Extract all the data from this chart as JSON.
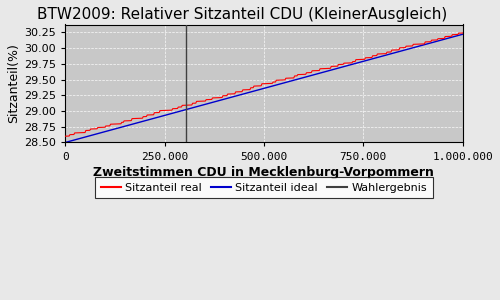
{
  "title": "BTW2009: Relativer Sitzanteil CDU (KleinerAusgleich)",
  "xlabel": "Zweitstimmen CDU in Mecklenburg-Vorpommern",
  "ylabel": "Sitzanteil(%)",
  "xlim": [
    0,
    1000000
  ],
  "ylim": [
    28.5,
    30.375
  ],
  "yticks": [
    28.5,
    28.75,
    29.0,
    29.25,
    29.5,
    29.75,
    30.0,
    30.25
  ],
  "xticks": [
    0,
    250000,
    500000,
    750000,
    1000000
  ],
  "xtick_labels": [
    "0",
    "250.000",
    "500.000",
    "750.000",
    "1.000.000"
  ],
  "wahlergebnis_x": 305000,
  "ideal_start_y": 28.5,
  "ideal_end_y": 30.22,
  "real_start_y": 28.6,
  "real_end_y": 30.24,
  "color_real": "#ff0000",
  "color_ideal": "#0000cc",
  "color_wahlergebnis": "#404040",
  "plot_bg_color": "#c8c8c8",
  "fig_bg_color": "#e8e8e8",
  "title_fontsize": 11,
  "axis_label_fontsize": 9,
  "tick_fontsize": 8,
  "legend_fontsize": 8,
  "n_steps": 55,
  "n_points": 500
}
